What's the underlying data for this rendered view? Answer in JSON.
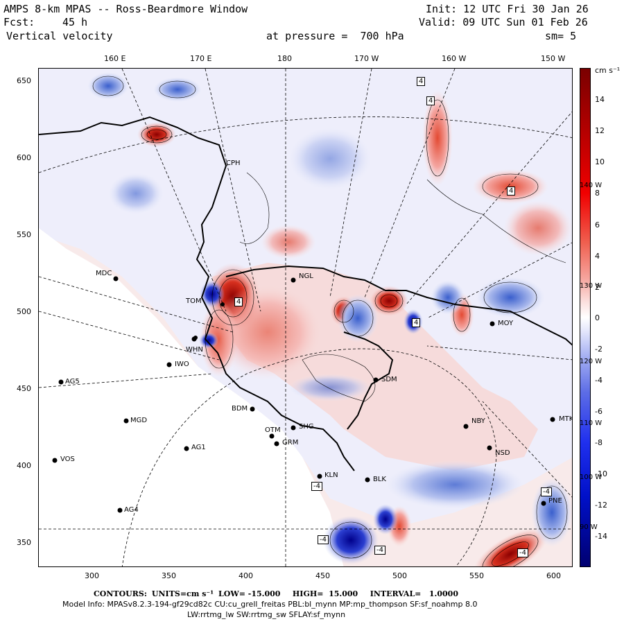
{
  "header": {
    "title": "AMPS 8-km MPAS -- Ross-Beardmore Window",
    "init": "Init: 12 UTC Fri 30 Jan 26",
    "fcst_label": "Fcst:",
    "fcst_value": "45 h",
    "valid": "Valid: 09 UTC Sun 01 Feb 26",
    "field": "Vertical velocity",
    "pressure": "at pressure =  700 hPa",
    "smoothing": "sm= 5"
  },
  "lon_labels": [
    "160 E",
    "170 E",
    "180",
    "170 W",
    "160 W",
    "150 W"
  ],
  "y_ticks": [
    "650",
    "600",
    "550",
    "500",
    "450",
    "400",
    "350"
  ],
  "x_ticks": [
    "300",
    "350",
    "400",
    "450",
    "500",
    "550",
    "600"
  ],
  "colorbar": {
    "units": "cm s⁻¹",
    "labels": [
      "14",
      "12",
      "10",
      "8",
      "6",
      "4",
      "2",
      "0",
      "-2",
      "-4",
      "-6",
      "-8",
      "-10",
      "-12",
      "-14"
    ],
    "side_labels": [
      "140 W",
      "130 W",
      "120 W",
      "110 W",
      "100 W",
      "90 W"
    ]
  },
  "stations": [
    {
      "name": "CPH"
    },
    {
      "name": "MDC"
    },
    {
      "name": "NGL"
    },
    {
      "name": "TOM"
    },
    {
      "name": "WHN"
    },
    {
      "name": "IWO"
    },
    {
      "name": "AG5"
    },
    {
      "name": "MGD"
    },
    {
      "name": "BDM"
    },
    {
      "name": "SDM"
    },
    {
      "name": "SHG"
    },
    {
      "name": "OTM"
    },
    {
      "name": "GRM"
    },
    {
      "name": "AG1"
    },
    {
      "name": "VOS"
    },
    {
      "name": "KLN"
    },
    {
      "name": "BLK"
    },
    {
      "name": "NBY"
    },
    {
      "name": "NSD"
    },
    {
      "name": "MTK"
    },
    {
      "name": "MOY"
    },
    {
      "name": "AG4"
    },
    {
      "name": "PNE"
    }
  ],
  "contour_boxes": [
    "4",
    "4",
    "4",
    "4",
    "4",
    "-4",
    "-4",
    "-4",
    "-4",
    "-4"
  ],
  "footer": {
    "contours_label": "CONTOURS:",
    "units": "UNITS=cm s⁻¹",
    "low": "LOW= -15.000",
    "high": "HIGH=  15.000",
    "interval": "INTERVAL=   1.0000",
    "model_info": "Model Info: MPASv8.2.3-194-gf29cd82c CU:cu_grell_freitas PBL:bl_mynn MP:mp_thompson SF:sf_noahmp 8.0",
    "physics": "LW:rrtmg_lw SW:rrtmg_sw SFLAY:sf_mynn"
  },
  "colors": {
    "max_red": "#8b0000",
    "zero": "#ffffff",
    "max_blue": "#00008b"
  }
}
